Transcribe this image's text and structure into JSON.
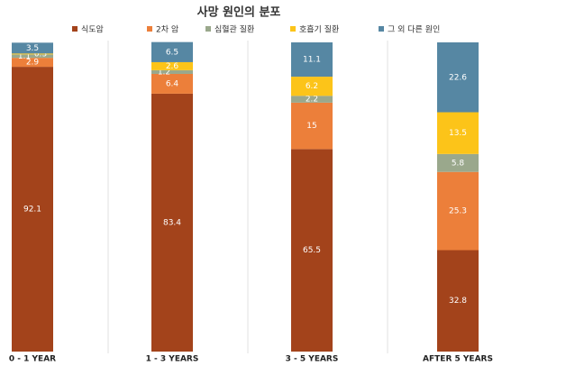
{
  "chart_data": {
    "type": "stacked_bar",
    "title": "사망 원인의 분포",
    "categories": [
      "0 - 1 YEAR",
      "1 - 3 YEARS",
      "3 - 5 YEARS",
      "AFTER 5 YEARS"
    ],
    "series": [
      {
        "name": "식도암",
        "color": "#a3431b",
        "values": [
          92.1,
          83.4,
          65.5,
          32.8
        ]
      },
      {
        "name": "2차 암",
        "color": "#ec7f3a",
        "values": [
          2.9,
          6.4,
          15,
          25.3
        ]
      },
      {
        "name": "심혈관 질환",
        "color": "#9aa88c",
        "values": [
          1.1,
          1.2,
          2.2,
          5.8
        ]
      },
      {
        "name": "호흡기 질환",
        "color": "#fcc419",
        "values": [
          0.3,
          2.6,
          6.2,
          13.5
        ]
      },
      {
        "name": "그 외 다른 원인",
        "color": "#5687a3",
        "values": [
          3.5,
          6.5,
          11.1,
          22.6
        ]
      }
    ],
    "ylim": [
      0,
      100
    ]
  }
}
